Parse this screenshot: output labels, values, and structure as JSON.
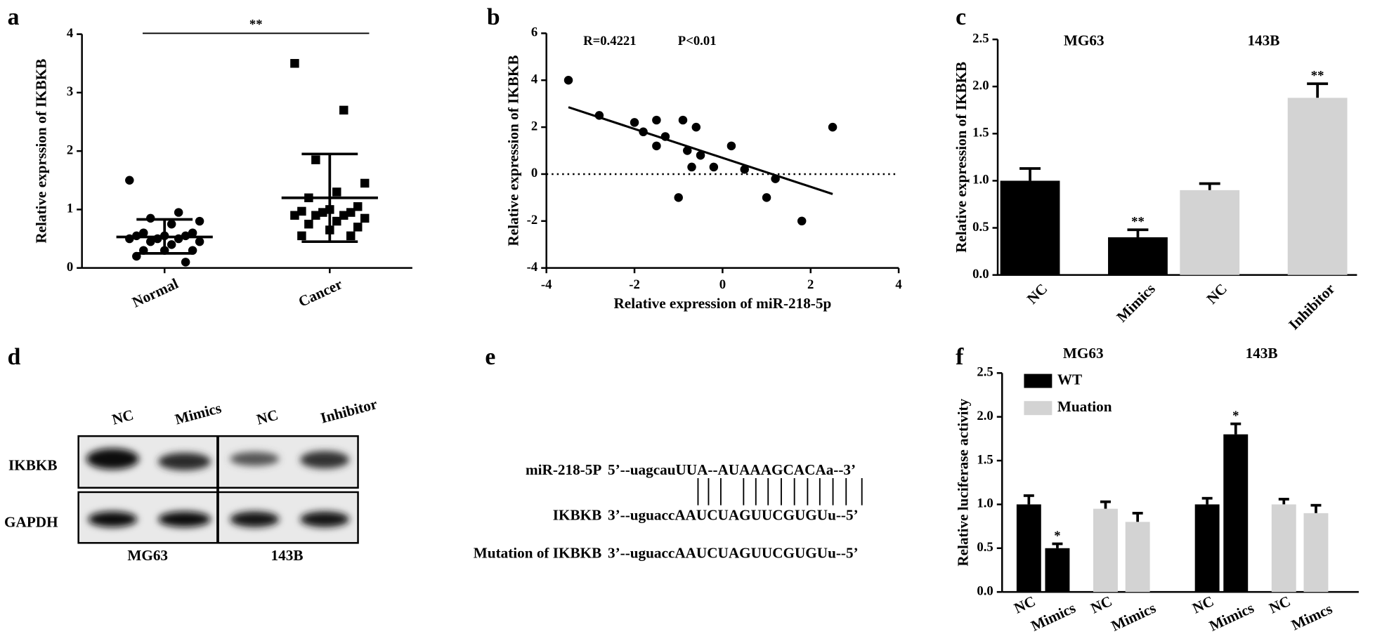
{
  "chart_data": [
    {
      "type": "strip",
      "letter": "a",
      "ylabel": "Relative exprssion of IKBKB",
      "categories": [
        "Normal",
        "Cancer"
      ],
      "ylim": [
        0,
        4
      ],
      "yticks": [
        0,
        1,
        2,
        3,
        4
      ],
      "significance": "**",
      "series": [
        {
          "marker": "circle",
          "color": "#000000",
          "values": [
            1.5,
            0.95,
            0.85,
            0.8,
            0.75,
            0.6,
            0.6,
            0.55,
            0.55,
            0.55,
            0.5,
            0.5,
            0.5,
            0.45,
            0.45,
            0.4,
            0.3,
            0.3,
            0.3,
            0.2,
            0.1
          ],
          "mean": 0.53,
          "lower": 0.25,
          "upper": 0.83
        },
        {
          "marker": "square",
          "color": "#000000",
          "values": [
            3.5,
            2.7,
            1.85,
            1.45,
            1.3,
            1.2,
            1.05,
            1.0,
            0.97,
            0.95,
            0.95,
            0.9,
            0.9,
            0.9,
            0.85,
            0.8,
            0.75,
            0.7,
            0.65,
            0.55,
            0.55
          ],
          "mean": 1.2,
          "lower": 0.45,
          "upper": 1.95
        }
      ]
    },
    {
      "type": "scatter",
      "letter": "b",
      "xlabel": "Relative expression of miR-218-5p",
      "ylabel": "Relative expression  of  IKBKB",
      "annotations": [
        "R=0.4221",
        "P<0.01"
      ],
      "color": "#000000",
      "x": [
        -3.5,
        -2.8,
        -2.0,
        -1.8,
        -1.5,
        -1.5,
        -1.3,
        -0.9,
        -0.8,
        -0.6,
        -0.5,
        -0.7,
        -0.2,
        0.2,
        0.5,
        1.2,
        -1.0,
        1.0,
        1.8,
        2.5
      ],
      "y": [
        4.0,
        2.5,
        2.2,
        1.8,
        2.3,
        1.2,
        1.6,
        2.3,
        1.0,
        2.0,
        0.8,
        0.3,
        0.3,
        1.2,
        0.2,
        -0.2,
        -1.0,
        -1.0,
        -2.0,
        2.0
      ],
      "xlim": [
        -4,
        4
      ],
      "xticks": [
        -4,
        -2,
        0,
        2,
        4
      ],
      "ylim": [
        -4,
        6
      ],
      "yticks": [
        -4,
        -2,
        0,
        2,
        4,
        6
      ],
      "reference_line": 0,
      "fit": {
        "x": [
          -3.5,
          2.5
        ],
        "y": [
          2.85,
          -0.85
        ]
      }
    },
    {
      "type": "bar",
      "letter": "c",
      "ylabel": "Relative expression of IKBKB",
      "groups": [
        "MG63",
        "143B"
      ],
      "categories": [
        "NC",
        "Mimics",
        "NC",
        "Inhibitor"
      ],
      "values": [
        1.0,
        0.4,
        0.9,
        1.88
      ],
      "errors": [
        0.13,
        0.08,
        0.07,
        0.15
      ],
      "colors": [
        "#000000",
        "#000000",
        "#d3d3d3",
        "#d3d3d3"
      ],
      "annotations": [
        null,
        "**",
        null,
        "**"
      ],
      "ylim": [
        0,
        2.5
      ],
      "yticks": [
        {
          "value": 0,
          "label": "0.0"
        },
        0.5,
        {
          "value": 1,
          "label": "1.0"
        },
        1.5,
        {
          "value": 2,
          "label": "2.0"
        },
        2.5
      ]
    },
    {
      "type": "grouped_bar",
      "letter": "f",
      "ylabel": "Relative luciferase activity",
      "groups": [
        "MG63",
        "143B"
      ],
      "categories": [
        "NC",
        "Mimics",
        "NC",
        "Mimics",
        "NC",
        "Mimics",
        "NC",
        "Mimcs"
      ],
      "legend": "upper left",
      "series": [
        {
          "name": "WT",
          "color": "#000000",
          "values": [
            1.0,
            0.5,
            null,
            null,
            1.0,
            1.8,
            null,
            null
          ],
          "errors": [
            0.1,
            0.05,
            null,
            null,
            0.07,
            0.12,
            null,
            null
          ],
          "annotations": [
            null,
            "*",
            null,
            null,
            null,
            "*",
            null,
            null
          ]
        },
        {
          "name": "Muation",
          "color": "#d3d3d3",
          "values": [
            null,
            null,
            0.95,
            0.8,
            null,
            null,
            1.0,
            0.9
          ],
          "errors": [
            null,
            null,
            0.08,
            0.1,
            null,
            null,
            0.06,
            0.09
          ],
          "annotations": [
            null,
            null,
            null,
            null,
            null,
            null,
            null,
            null
          ]
        }
      ],
      "ylim": [
        0,
        2.5
      ],
      "yticks": [
        {
          "value": 0,
          "label": "0.0"
        },
        0.5,
        {
          "value": 1,
          "label": "1.0"
        },
        1.5,
        {
          "value": 2,
          "label": "2.0"
        },
        2.5
      ]
    }
  ],
  "blot": {
    "letter": "d",
    "columns": [
      "NC",
      "Mimics",
      "NC",
      "Inhibitor"
    ],
    "rows": [
      "IKBKB",
      "GAPDH"
    ],
    "cell_lines": [
      "MG63",
      "143B"
    ]
  },
  "alignment": {
    "letter": "e",
    "rows": [
      {
        "label": "miR-218-5P",
        "sequence": "5’--uagcauUUA--AUAAAGCACAa--3’"
      },
      {
        "label": "IKBKB",
        "sequence": "3’--uguaccAAUCUAGUUCGUGUu--5’"
      },
      {
        "label": "Mutation of IKBKB",
        "sequence": "3’--uguaccAAUCUAGUUCGUGUu--5’"
      }
    ]
  }
}
